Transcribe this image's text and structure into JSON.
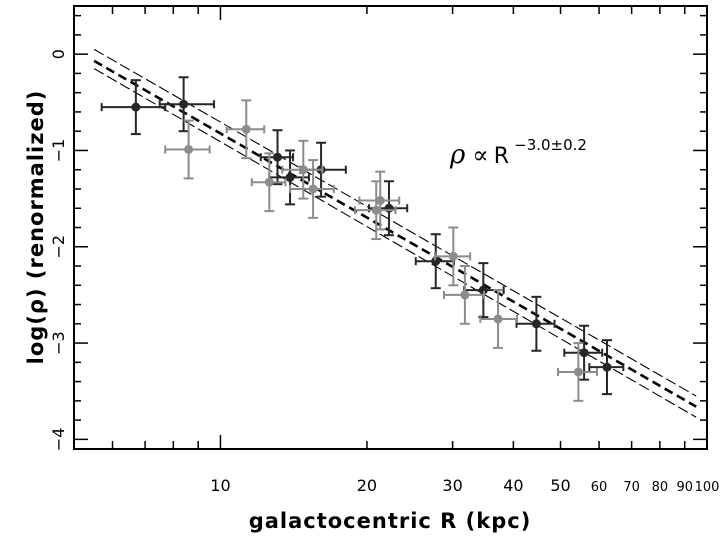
{
  "chart_data": {
    "type": "scatter",
    "title": "",
    "xlabel": "galactocentric R (kpc)",
    "ylabel": "log(ρ) (renormalized)",
    "xscale": "log",
    "xlim": [
      5.0,
      100
    ],
    "ylim": [
      -4.1,
      0.5
    ],
    "grid": false,
    "legend": "none",
    "x_tick_labels": [
      "10",
      "20",
      "30",
      "40",
      "50",
      "60",
      "70",
      "80",
      "90",
      "100"
    ],
    "y_tick_labels": [
      "0",
      "−1",
      "−2",
      "−3",
      "−4"
    ],
    "y_ticks": [
      0,
      -1,
      -2,
      -3,
      -4
    ],
    "annotation": {
      "symbol": "ρ",
      "relation": "∝",
      "base": "R",
      "exponent": "−3.0±0.2"
    },
    "fit_lines": [
      {
        "name": "",
        "style": "thick-dashed",
        "x": [
          5.5,
          95
        ],
        "y": [
          -0.07,
          -3.66
        ]
      },
      {
        "name": "",
        "style": "thin-dashed",
        "x": [
          5.5,
          95
        ],
        "y": [
          0.05,
          -3.55
        ]
      },
      {
        "name": "",
        "style": "thin-dashed",
        "x": [
          5.5,
          95
        ],
        "y": [
          -0.15,
          -3.77
        ]
      }
    ],
    "series": [
      {
        "shade": "dark",
        "points": [
          {
            "x": 6.7,
            "y": -0.55,
            "xerr": [
              1.0,
              1.0
            ],
            "yerr": [
              0.28,
              0.28
            ]
          },
          {
            "x": 8.4,
            "y": -0.52,
            "xerr": [
              0.9,
              1.3
            ],
            "yerr": [
              0.28,
              0.28
            ]
          },
          {
            "x": 13.1,
            "y": -1.07,
            "xerr": [
              1.0,
              1.0
            ],
            "yerr": [
              0.28,
              0.28
            ]
          },
          {
            "x": 13.9,
            "y": -1.28,
            "xerr": [
              1.3,
              1.3
            ],
            "yerr": [
              0.28,
              0.28
            ]
          },
          {
            "x": 16.1,
            "y": -1.2,
            "xerr": [
              1.5,
              2.0
            ],
            "yerr": [
              0.28,
              0.28
            ]
          },
          {
            "x": 22.2,
            "y": -1.6,
            "xerr": [
              2.0,
              2.0
            ],
            "yerr": [
              0.28,
              0.28
            ]
          },
          {
            "x": 27.7,
            "y": -2.15,
            "xerr": [
              2.5,
              2.5
            ],
            "yerr": [
              0.28,
              0.28
            ]
          },
          {
            "x": 34.7,
            "y": -2.45,
            "xerr": [
              3.0,
              3.5
            ],
            "yerr": [
              0.28,
              0.28
            ]
          },
          {
            "x": 44.6,
            "y": -2.8,
            "xerr": [
              4.0,
              4.0
            ],
            "yerr": [
              0.28,
              0.28
            ]
          },
          {
            "x": 55.9,
            "y": -3.1,
            "xerr": [
              5.0,
              5.0
            ],
            "yerr": [
              0.28,
              0.28
            ]
          },
          {
            "x": 62.3,
            "y": -3.25,
            "xerr": [
              5.0,
              5.0
            ],
            "yerr": [
              0.28,
              0.28
            ]
          }
        ]
      },
      {
        "shade": "light",
        "points": [
          {
            "x": 8.6,
            "y": -0.99,
            "xerr": [
              0.9,
              0.9
            ],
            "yerr": [
              0.3,
              0.3
            ]
          },
          {
            "x": 11.3,
            "y": -0.78,
            "xerr": [
              1.0,
              1.0
            ],
            "yerr": [
              0.3,
              0.3
            ]
          },
          {
            "x": 12.6,
            "y": -1.33,
            "xerr": [
              1.0,
              1.0
            ],
            "yerr": [
              0.3,
              0.3
            ]
          },
          {
            "x": 14.8,
            "y": -1.2,
            "xerr": [
              1.4,
              1.4
            ],
            "yerr": [
              0.3,
              0.3
            ]
          },
          {
            "x": 15.5,
            "y": -1.4,
            "xerr": [
              1.6,
              1.6
            ],
            "yerr": [
              0.3,
              0.3
            ]
          },
          {
            "x": 20.9,
            "y": -1.62,
            "xerr": [
              2.0,
              2.0
            ],
            "yerr": [
              0.3,
              0.3
            ]
          },
          {
            "x": 21.3,
            "y": -1.52,
            "xerr": [
              2.0,
              2.0
            ],
            "yerr": [
              0.3,
              0.3
            ]
          },
          {
            "x": 30.1,
            "y": -2.1,
            "xerr": [
              2.5,
              2.5
            ],
            "yerr": [
              0.3,
              0.3
            ]
          },
          {
            "x": 31.8,
            "y": -2.5,
            "xerr": [
              3.0,
              3.0
            ],
            "yerr": [
              0.3,
              0.3
            ]
          },
          {
            "x": 37.2,
            "y": -2.75,
            "xerr": [
              3.0,
              3.5
            ],
            "yerr": [
              0.3,
              0.3
            ]
          },
          {
            "x": 54.4,
            "y": -3.3,
            "xerr": [
              5.0,
              5.0
            ],
            "yerr": [
              0.3,
              0.3
            ]
          }
        ]
      }
    ],
    "colors": {
      "dark": "#262626",
      "light": "#8c8c8c",
      "frame": "#000000"
    }
  }
}
